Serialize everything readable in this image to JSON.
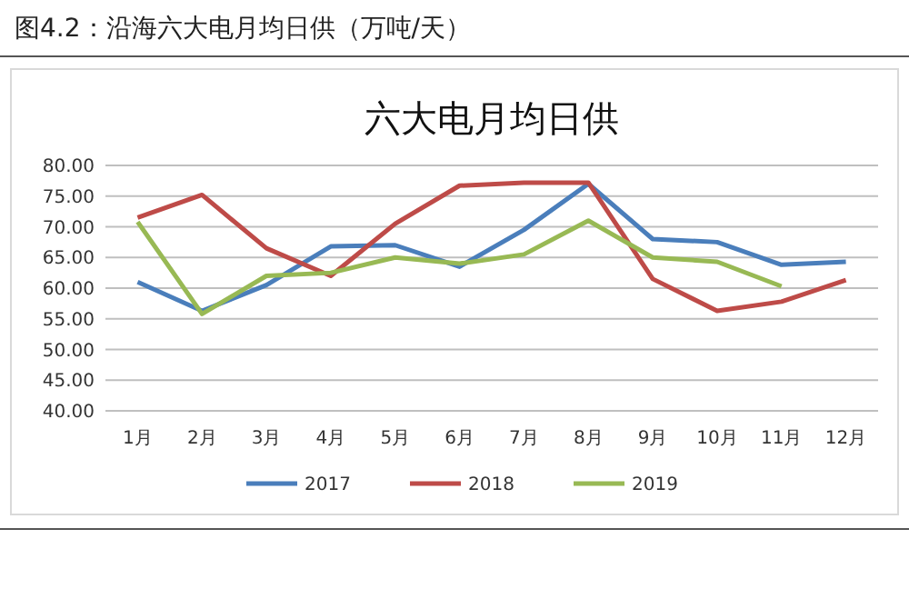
{
  "chart_data": {
    "type": "line",
    "title": "六大电月均日供",
    "subtitle": "图4.2：沿海六大电月均日供（万吨/天）",
    "categories": [
      "1月",
      "2月",
      "3月",
      "4月",
      "5月",
      "6月",
      "7月",
      "8月",
      "9月",
      "10月",
      "11月",
      "12月"
    ],
    "series": [
      {
        "name": "2017",
        "color": "#4a7ebb",
        "values": [
          61,
          56.3,
          60.5,
          66.8,
          67,
          63.5,
          69.5,
          77,
          68,
          67.5,
          63.8,
          64.3
        ]
      },
      {
        "name": "2018",
        "color": "#be4b48",
        "values": [
          71.5,
          75.2,
          66.5,
          62,
          70.5,
          76.7,
          77.2,
          77.2,
          61.5,
          56.3,
          57.8,
          61.3
        ]
      },
      {
        "name": "2019",
        "color": "#98b954",
        "values": [
          70.8,
          55.8,
          62,
          62.5,
          65,
          64,
          65.5,
          71,
          65,
          64.3,
          60.3,
          null
        ]
      }
    ],
    "ylim": [
      40,
      80
    ],
    "yticks": [
      {
        "value": 40,
        "label": "40.00"
      },
      {
        "value": 45,
        "label": "45.00"
      },
      {
        "value": 50,
        "label": "50.00"
      },
      {
        "value": 55,
        "label": "55.00"
      },
      {
        "value": 60,
        "label": "60.00"
      },
      {
        "value": 65,
        "label": "65.00"
      },
      {
        "value": 70,
        "label": "70.00"
      },
      {
        "value": 75,
        "label": "75.00"
      },
      {
        "value": 80,
        "label": "80.00"
      }
    ],
    "grid": "y",
    "legend": "bottom",
    "marker": "none",
    "line_style": "solid"
  }
}
